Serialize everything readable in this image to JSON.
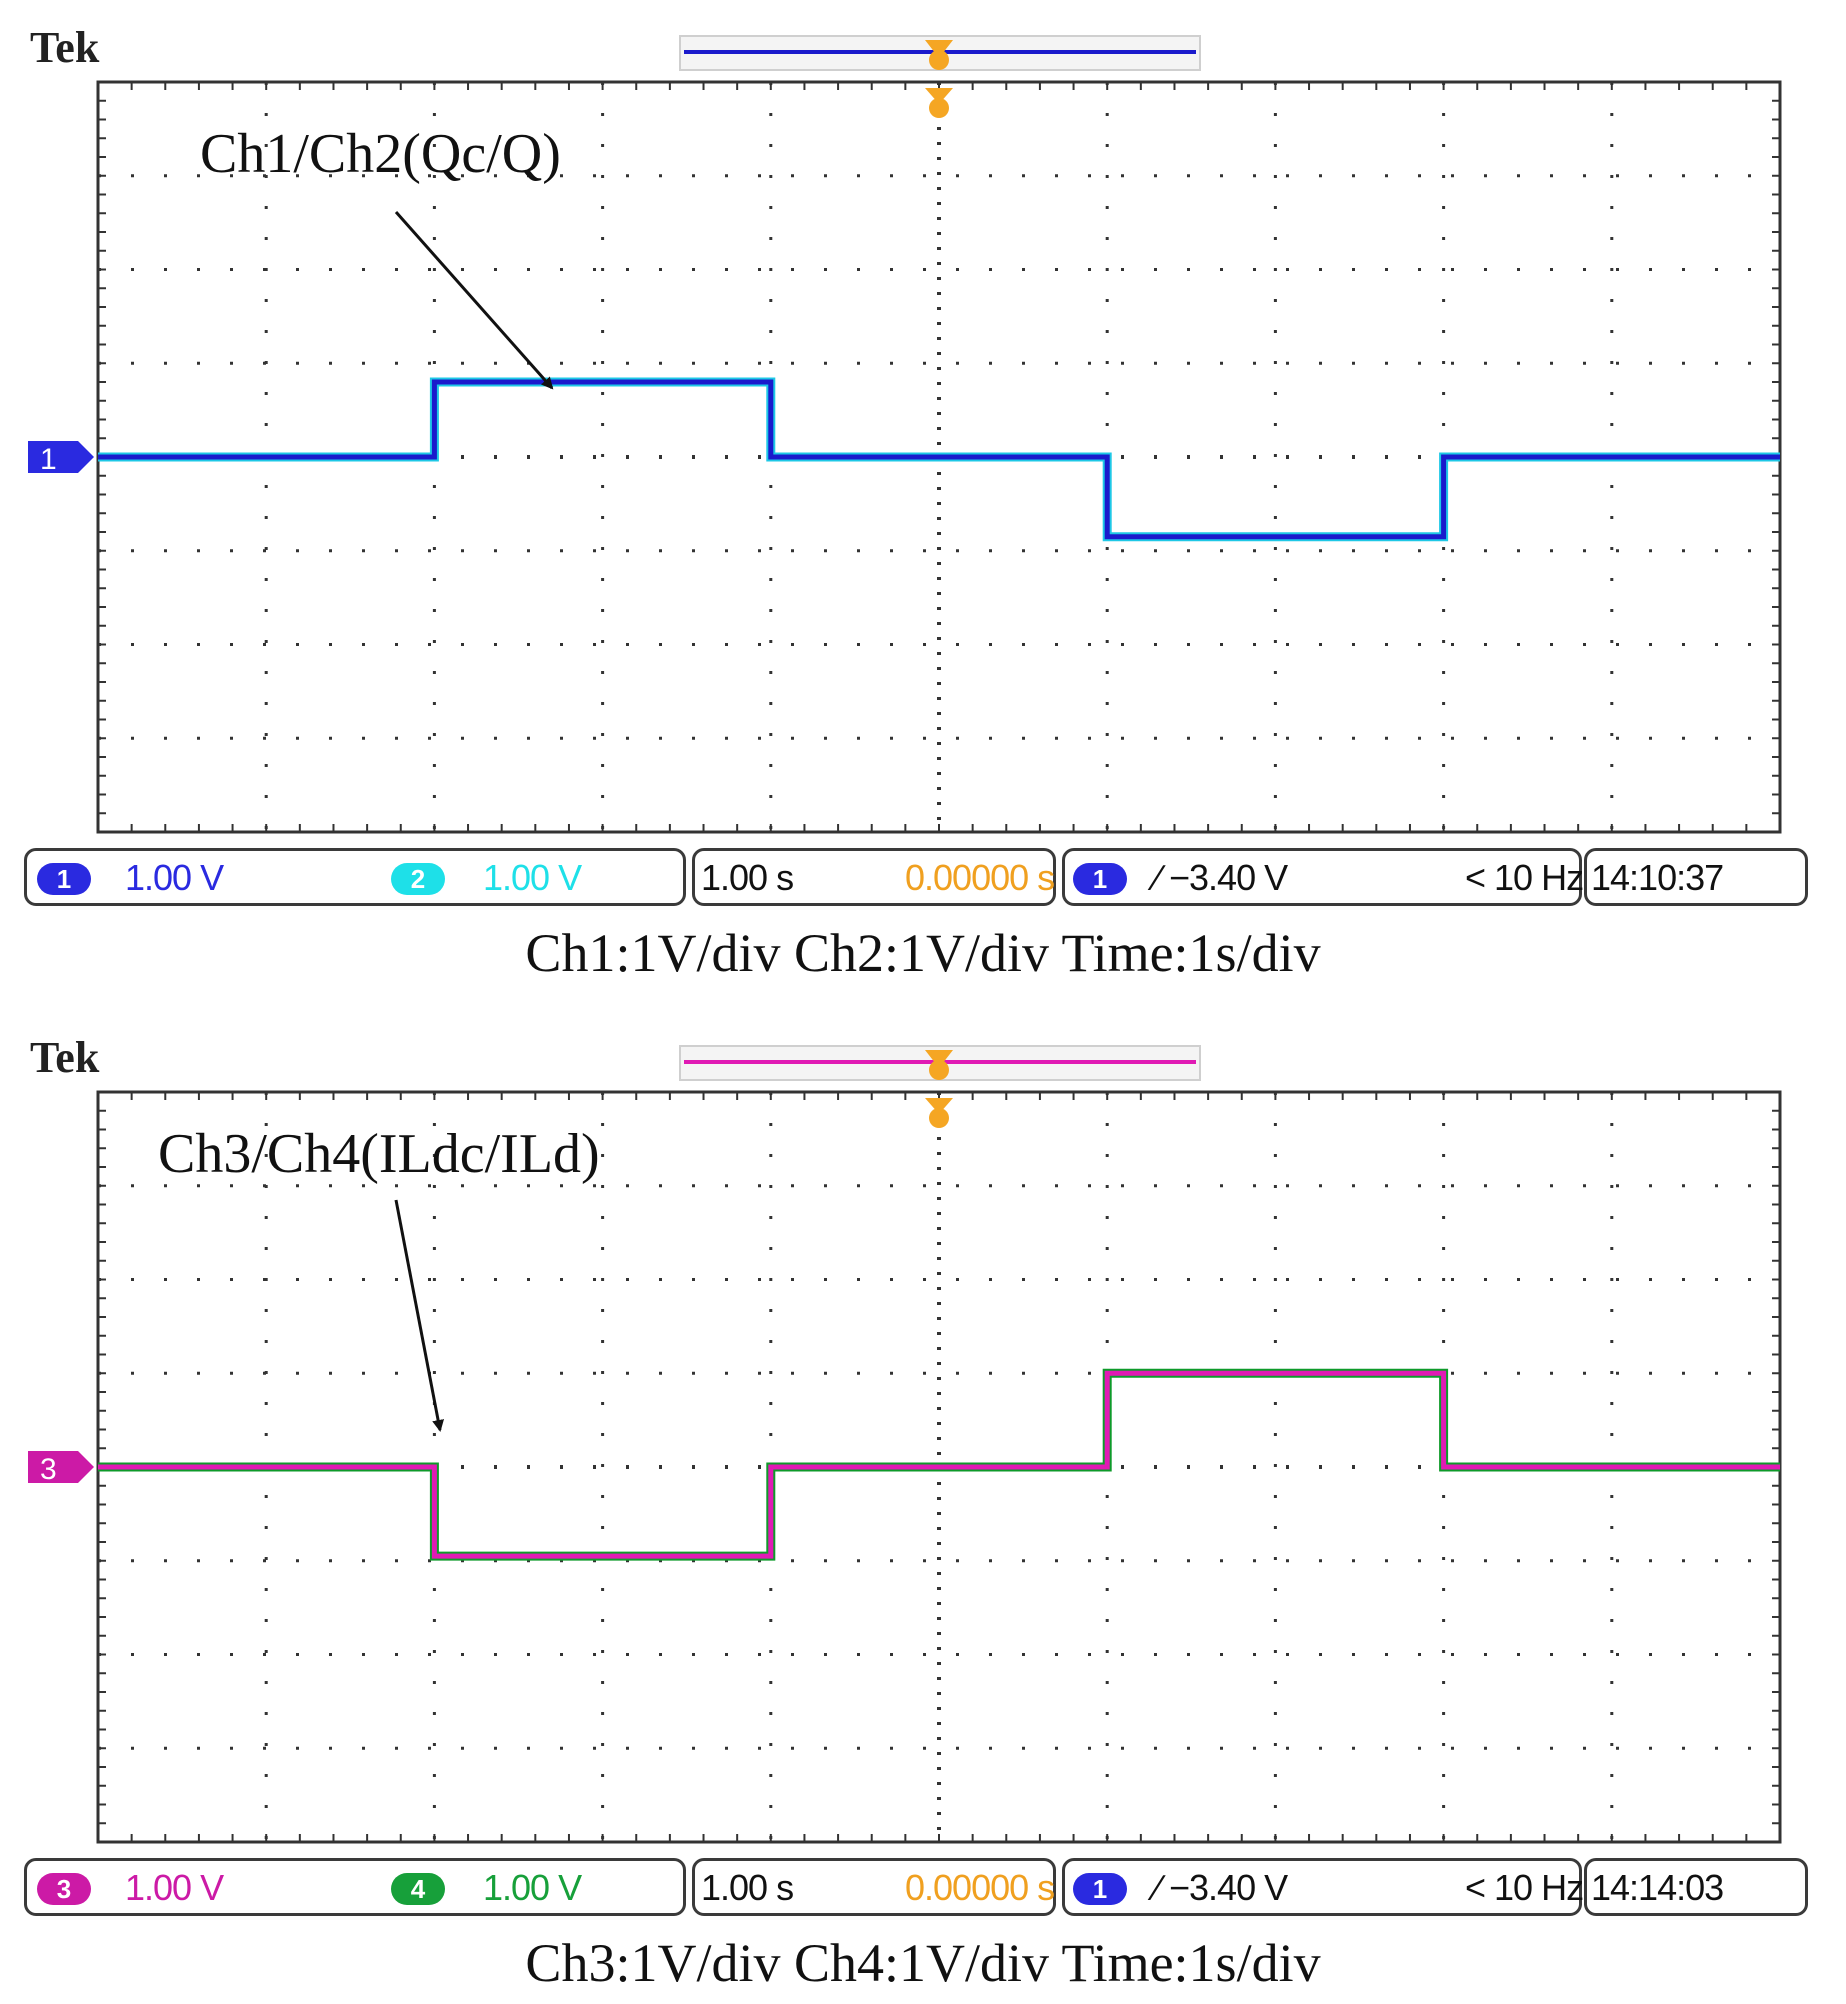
{
  "chart_data": [
    {
      "type": "line",
      "brand": "Tek",
      "annotation": "Ch1/Ch2(Qc/Q)",
      "caption": "Ch1:1V/div Ch2:1V/div Time:1s/div",
      "x_range_div": [
        -5,
        5
      ],
      "y_range_div": [
        -4,
        4
      ],
      "grid": true,
      "series": [
        {
          "name": "Ch1",
          "color": "#1a1acc",
          "x": [
            -5,
            -3,
            -3,
            -1,
            -1,
            1,
            1,
            3,
            3,
            5
          ],
          "y": [
            0,
            0,
            0.8,
            0.8,
            0,
            0,
            -0.85,
            -0.85,
            0,
            0
          ]
        },
        {
          "name": "Ch2",
          "color": "#1ec8e6",
          "x": [
            -5,
            -3,
            -3,
            -1,
            -1,
            1,
            1,
            3,
            3,
            5
          ],
          "y": [
            0,
            0,
            0.8,
            0.8,
            0,
            0,
            -0.85,
            -0.85,
            0,
            0
          ]
        }
      ],
      "ground_marker": "1",
      "ground_color": "#2a2ae0",
      "readout": {
        "ch_a_badge": "1",
        "ch_a_scale": "1.00 V",
        "ch_a_color": "#2a2ae0",
        "ch_b_badge": "2",
        "ch_b_scale": "1.00 V",
        "ch_b_color": "#1ee0e8",
        "timebase": "1.00 s",
        "position": "0.00000 s",
        "trig_badge": "1",
        "trig_level": "∕ −3.40 V",
        "trig_freq": "< 10 Hz",
        "clock": "14:10:37"
      }
    },
    {
      "type": "line",
      "brand": "Tek",
      "annotation": "Ch3/Ch4(ILdc/ILd)",
      "caption": "Ch3:1V/div Ch4:1V/div Time:1s/div",
      "x_range_div": [
        -5,
        5
      ],
      "y_range_div": [
        -4,
        4
      ],
      "grid": true,
      "series": [
        {
          "name": "Ch3",
          "color": "#e01ab4",
          "x": [
            -5,
            -3,
            -3,
            -1,
            -1,
            1,
            1,
            3,
            3,
            5
          ],
          "y": [
            0,
            0,
            -0.95,
            -0.95,
            0,
            0,
            1.0,
            1.0,
            0,
            0
          ]
        },
        {
          "name": "Ch4",
          "color": "#0e9a2a",
          "x": [
            -5,
            -3,
            -3,
            -1,
            -1,
            1,
            1,
            3,
            3,
            5
          ],
          "y": [
            0,
            0,
            -0.95,
            -0.95,
            0,
            0,
            1.0,
            1.0,
            0,
            0
          ]
        }
      ],
      "ground_marker": "3",
      "ground_color": "#cc1aa6",
      "readout": {
        "ch_a_badge": "3",
        "ch_a_scale": "1.00 V",
        "ch_a_color": "#cc1aa6",
        "ch_b_badge": "4",
        "ch_b_scale": "1.00 V",
        "ch_b_color": "#17a03a",
        "timebase": "1.00 s",
        "position": "0.00000 s",
        "trig_badge": "1",
        "trig_level": "∕ −3.40 V",
        "trig_freq": "< 10 Hz",
        "clock": "14:14:03"
      }
    }
  ]
}
